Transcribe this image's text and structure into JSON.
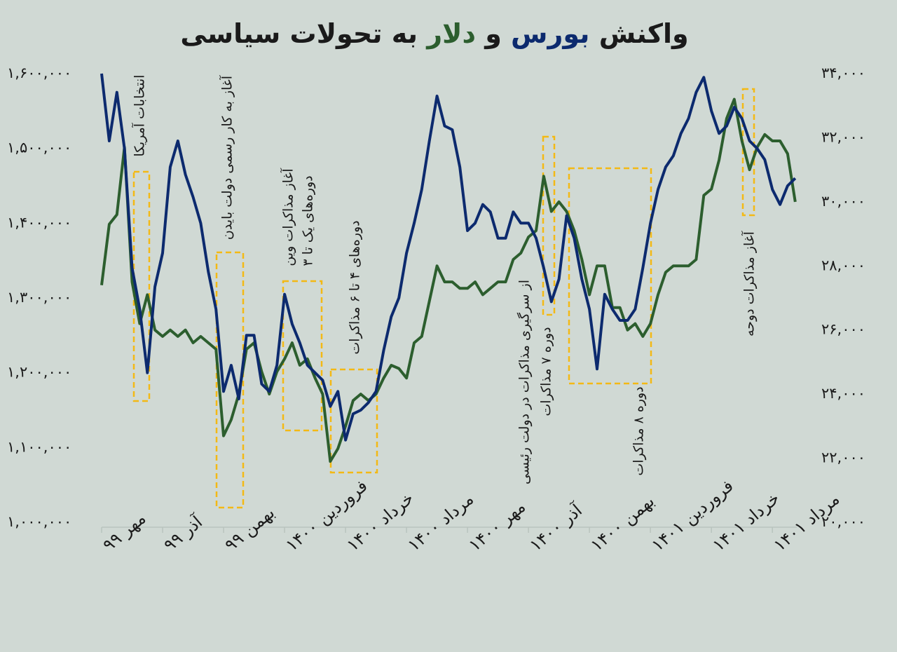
{
  "chart_data": {
    "type": "line",
    "title": {
      "before": "واکنش",
      "middle": "و",
      "after": "به تحولات سیاسی"
    },
    "xlim": [
      0,
      22.8
    ],
    "xticks": [
      {
        "value": 0,
        "label": "مهر ۹۹"
      },
      {
        "value": 2,
        "label": "آذر ۹۹"
      },
      {
        "value": 4,
        "label": "بهمن ۹۹"
      },
      {
        "value": 6,
        "label": "فروردین ۱۴۰۰"
      },
      {
        "value": 8,
        "label": "خرداد ۱۴۰۰"
      },
      {
        "value": 10,
        "label": "مرداد ۱۴۰۰"
      },
      {
        "value": 12,
        "label": "مهر ۱۴۰۰"
      },
      {
        "value": 14,
        "label": "آذر ۱۴۰۰"
      },
      {
        "value": 16,
        "label": "بهمن ۱۴۰۰"
      },
      {
        "value": 18,
        "label": "فروردین ۱۴۰۱"
      },
      {
        "value": 20,
        "label": "خرداد ۱۴۰۱"
      },
      {
        "value": 22,
        "label": "مرداد ۱۴۰۱"
      }
    ],
    "ylim": [
      1000000,
      1600000
    ],
    "yticks": [
      {
        "value": 1000000,
        "label": "۱,۰۰۰,۰۰۰"
      },
      {
        "value": 1100000,
        "label": "۱,۱۰۰,۰۰۰"
      },
      {
        "value": 1200000,
        "label": "۱,۲۰۰,۰۰۰"
      },
      {
        "value": 1300000,
        "label": "۱,۳۰۰,۰۰۰"
      },
      {
        "value": 1400000,
        "label": "۱,۴۰۰,۰۰۰"
      },
      {
        "value": 1500000,
        "label": "۱,۵۰۰,۰۰۰"
      },
      {
        "value": 1600000,
        "label": "۱,۶۰۰,۰۰۰"
      }
    ],
    "y2lim": [
      20000,
      34000
    ],
    "y2ticks": [
      {
        "value": 20000,
        "label": "۲۰,۰۰۰"
      },
      {
        "value": 22000,
        "label": "۲۲,۰۰۰"
      },
      {
        "value": 24000,
        "label": "۲۴,۰۰۰"
      },
      {
        "value": 26000,
        "label": "۲۶,۰۰۰"
      },
      {
        "value": 28000,
        "label": "۲۸,۰۰۰"
      },
      {
        "value": 30000,
        "label": "۳۰,۰۰۰"
      },
      {
        "value": 32000,
        "label": "۳۲,۰۰۰"
      },
      {
        "value": 34000,
        "label": "۳۴,۰۰۰"
      }
    ],
    "x": [
      0,
      0.25,
      0.5,
      0.75,
      1,
      1.25,
      1.5,
      1.75,
      2,
      2.25,
      2.5,
      2.75,
      3,
      3.25,
      3.5,
      3.75,
      4,
      4.25,
      4.5,
      4.75,
      5,
      5.25,
      5.5,
      5.75,
      6,
      6.25,
      6.5,
      6.75,
      7,
      7.25,
      7.5,
      7.75,
      8,
      8.25,
      8.5,
      8.75,
      9,
      9.25,
      9.5,
      9.75,
      10,
      10.25,
      10.5,
      10.75,
      11,
      11.25,
      11.5,
      11.75,
      12,
      12.25,
      12.5,
      12.75,
      13,
      13.25,
      13.5,
      13.75,
      14,
      14.25,
      14.5,
      14.75,
      15,
      15.25,
      15.5,
      15.75,
      16,
      16.25,
      16.5,
      16.75,
      17,
      17.25,
      17.5,
      17.75,
      18,
      18.25,
      18.5,
      18.75,
      19,
      19.25,
      19.5,
      19.75,
      20,
      20.25,
      20.5,
      20.75,
      21,
      21.25,
      21.5,
      21.75,
      22,
      22.25,
      22.5,
      22.75
    ],
    "series": [
      {
        "name": "بورس",
        "color": "#0c2a6e",
        "axis": "y",
        "values": [
          1600000,
          1510000,
          1575000,
          1500000,
          1340000,
          1285000,
          1200000,
          1315000,
          1360000,
          1475000,
          1510000,
          1465000,
          1435000,
          1400000,
          1335000,
          1285000,
          1175000,
          1210000,
          1165000,
          1250000,
          1250000,
          1185000,
          1175000,
          1210000,
          1305000,
          1265000,
          1240000,
          1210000,
          1200000,
          1190000,
          1155000,
          1175000,
          1110000,
          1145000,
          1150000,
          1160000,
          1175000,
          1230000,
          1275000,
          1300000,
          1360000,
          1400000,
          1445000,
          1510000,
          1570000,
          1530000,
          1525000,
          1475000,
          1390000,
          1400000,
          1425000,
          1415000,
          1380000,
          1380000,
          1415000,
          1400000,
          1400000,
          1380000,
          1340000,
          1295000,
          1325000,
          1410000,
          1380000,
          1325000,
          1285000,
          1205000,
          1305000,
          1285000,
          1270000,
          1270000,
          1285000,
          1340000,
          1400000,
          1445000,
          1475000,
          1490000,
          1520000,
          1540000,
          1575000,
          1595000,
          1550000,
          1520000,
          1530000,
          1555000,
          1540000,
          1510000,
          1500000,
          1485000,
          1445000,
          1425000,
          1450000,
          1460000
        ]
      },
      {
        "name": "دلار",
        "color": "#2c5e2e",
        "axis": "y2",
        "values": [
          27400,
          29300,
          29600,
          31700,
          27500,
          26200,
          27100,
          26000,
          25800,
          26000,
          25800,
          26000,
          25600,
          25800,
          25600,
          25400,
          22700,
          23200,
          24000,
          25400,
          25600,
          24700,
          24000,
          24700,
          25100,
          25600,
          24900,
          25100,
          24500,
          24000,
          21900,
          22300,
          23000,
          23800,
          24000,
          23800,
          24000,
          24500,
          24900,
          24800,
          24500,
          25600,
          25800,
          26900,
          28000,
          27500,
          27500,
          27300,
          27300,
          27500,
          27100,
          27300,
          27500,
          27500,
          28200,
          28400,
          28900,
          29100,
          30800,
          29700,
          30000,
          29700,
          29100,
          28200,
          27100,
          28000,
          28000,
          26700,
          26700,
          26000,
          26200,
          25800,
          26200,
          27100,
          27800,
          28000,
          28000,
          28000,
          28200,
          30200,
          30400,
          31300,
          32600,
          33200,
          31900,
          31000,
          31700,
          32100,
          31900,
          31900,
          31500,
          30000
        ]
      }
    ],
    "annotations": [
      "انتخابات آمریکا",
      "آغاز به کار رسمی دولت بایدن",
      "آغاز مذاکرات وین",
      "دوره‌های یک تا ۳",
      "دوره‌های ۴ تا ۶ مذاکرات",
      "از سرگیری مذاکرات در دولت رئیسی",
      "دوره ۷ مذاکرات",
      "دوره ۸ مذاکرات",
      "آغاز مذاکرات دوحه"
    ]
  }
}
